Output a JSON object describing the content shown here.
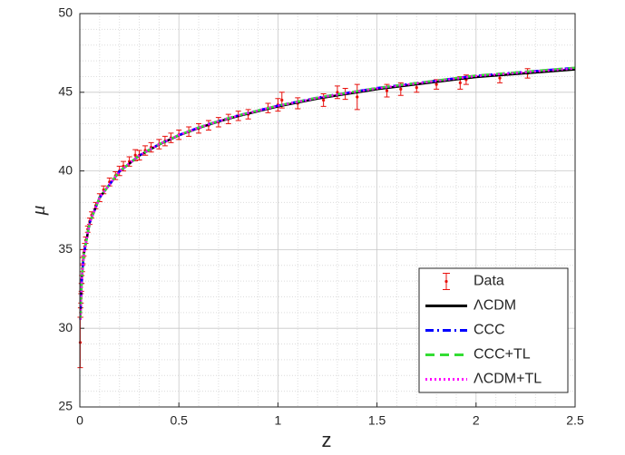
{
  "chart_data": {
    "type": "line",
    "xlabel": "z",
    "ylabel": "μ",
    "xlim": [
      0,
      2.5
    ],
    "ylim": [
      25,
      50
    ],
    "xticks": [
      0,
      0.5,
      1,
      1.5,
      2,
      2.5
    ],
    "yticks": [
      25,
      30,
      35,
      40,
      45,
      50
    ],
    "grid": true,
    "minor_grid": true,
    "legend": "lower right",
    "x": [
      0.003,
      0.005,
      0.01,
      0.02,
      0.05,
      0.1,
      0.2,
      0.3,
      0.4,
      0.5,
      0.6,
      0.7,
      0.8,
      1.0,
      1.2,
      1.5,
      2.0,
      2.5
    ],
    "data": {
      "name": "Data",
      "color": "#e8100c",
      "x": [
        0.002,
        0.004,
        0.006,
        0.008,
        0.01,
        0.013,
        0.016,
        0.02,
        0.025,
        0.03,
        0.04,
        0.05,
        0.06,
        0.08,
        0.1,
        0.12,
        0.15,
        0.18,
        0.2,
        0.22,
        0.25,
        0.28,
        0.3,
        0.33,
        0.36,
        0.4,
        0.43,
        0.46,
        0.5,
        0.55,
        0.6,
        0.65,
        0.7,
        0.75,
        0.8,
        0.85,
        0.95,
        1.0,
        1.02,
        1.1,
        1.23,
        1.3,
        1.34,
        1.4,
        1.55,
        1.62,
        1.7,
        1.8,
        1.92,
        1.95,
        2.12,
        2.26
      ],
      "values": [
        29.1,
        31.0,
        31.9,
        32.6,
        33.1,
        33.8,
        34.3,
        34.8,
        35.2,
        35.6,
        36.3,
        36.8,
        37.2,
        37.8,
        38.3,
        38.8,
        39.3,
        39.7,
        40.0,
        40.3,
        40.6,
        41.0,
        41.0,
        41.3,
        41.5,
        41.7,
        41.9,
        42.1,
        42.3,
        42.5,
        42.7,
        42.9,
        43.1,
        43.3,
        43.5,
        43.6,
        44.0,
        44.2,
        44.5,
        44.3,
        44.5,
        45.0,
        44.9,
        44.7,
        45.1,
        45.2,
        45.3,
        45.5,
        45.6,
        45.8,
        45.9,
        46.2
      ],
      "errors": [
        1.6,
        0.3,
        0.3,
        0.25,
        0.25,
        0.2,
        0.2,
        0.2,
        0.2,
        0.2,
        0.2,
        0.2,
        0.2,
        0.2,
        0.25,
        0.25,
        0.25,
        0.25,
        0.3,
        0.3,
        0.3,
        0.35,
        0.3,
        0.3,
        0.3,
        0.3,
        0.3,
        0.3,
        0.3,
        0.3,
        0.3,
        0.3,
        0.3,
        0.3,
        0.3,
        0.3,
        0.3,
        0.4,
        0.5,
        0.35,
        0.4,
        0.4,
        0.35,
        0.8,
        0.4,
        0.4,
        0.3,
        0.3,
        0.4,
        0.3,
        0.3,
        0.3
      ]
    },
    "series": [
      {
        "name": "ΛCDM",
        "color": "#000000",
        "dash": "solid",
        "values": [
          30.55,
          31.66,
          33.18,
          34.7,
          36.72,
          38.31,
          39.96,
          40.97,
          41.68,
          42.26,
          42.73,
          43.14,
          43.49,
          44.1,
          44.6,
          45.2,
          45.97,
          46.45
        ]
      },
      {
        "name": "CCC",
        "color": "#0000ff",
        "dash": "dashdot",
        "values": [
          30.55,
          31.66,
          33.18,
          34.7,
          36.72,
          38.31,
          39.97,
          40.98,
          41.7,
          42.28,
          42.76,
          43.17,
          43.53,
          44.15,
          44.66,
          45.27,
          46.05,
          46.55
        ]
      },
      {
        "name": "CCC+TL",
        "color": "#33dd33",
        "dash": "dashed",
        "values": [
          30.55,
          31.66,
          33.18,
          34.7,
          36.72,
          38.31,
          39.97,
          40.98,
          41.7,
          42.28,
          42.76,
          43.17,
          43.53,
          44.15,
          44.66,
          45.27,
          46.06,
          46.56
        ]
      },
      {
        "name": "ΛCDM+TL",
        "color": "#ff00ff",
        "dash": "dotted",
        "values": [
          30.55,
          31.66,
          33.18,
          34.7,
          36.72,
          38.31,
          39.97,
          40.98,
          41.7,
          42.28,
          42.75,
          43.16,
          43.52,
          44.14,
          44.64,
          45.25,
          46.03,
          46.52
        ]
      }
    ]
  }
}
